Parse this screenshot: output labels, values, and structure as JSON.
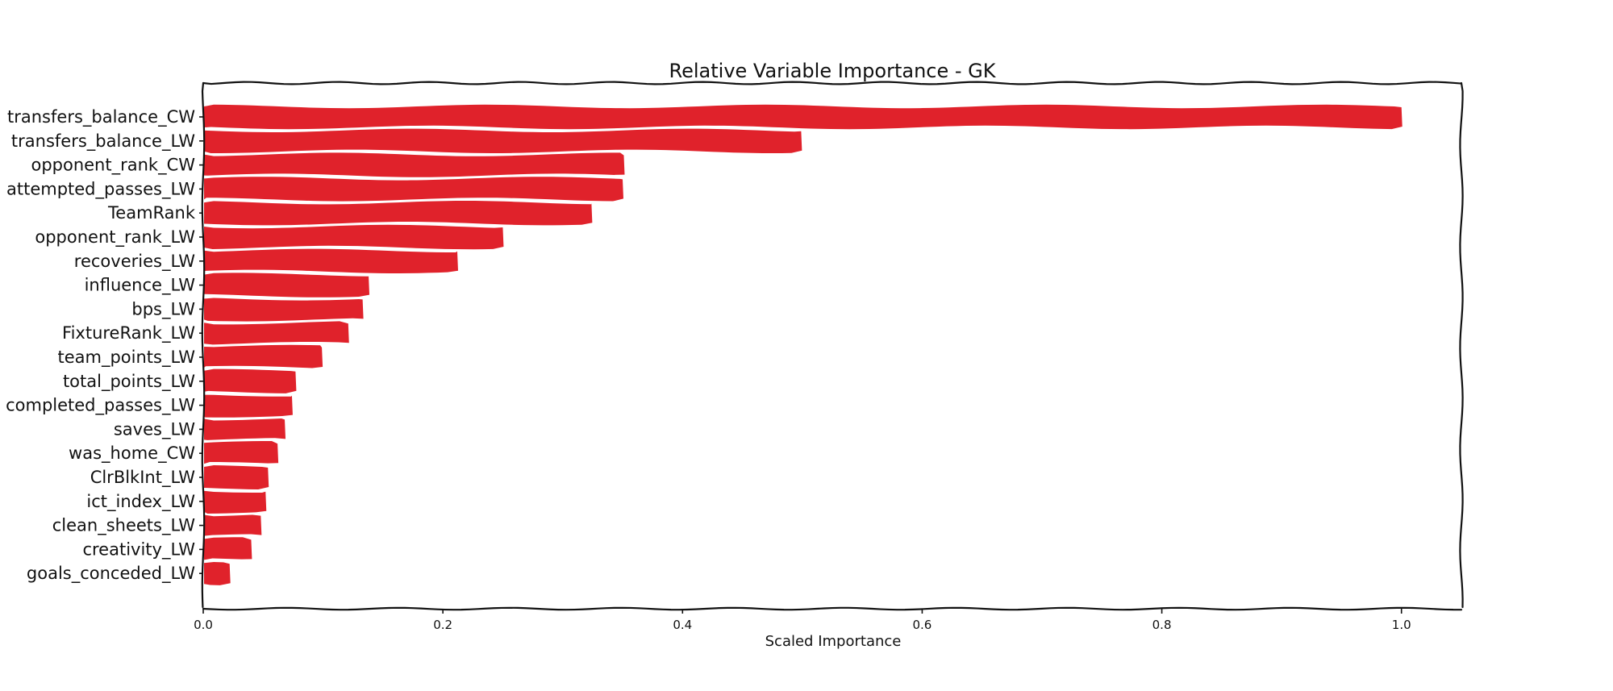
{
  "chart_data": {
    "type": "bar",
    "orientation": "horizontal",
    "title": "Relative Variable Importance - GK",
    "xlabel": "Scaled Importance",
    "ylabel": "",
    "xlim": [
      0,
      1.05
    ],
    "xticks": [
      0.0,
      0.2,
      0.4,
      0.6,
      0.8,
      1.0
    ],
    "xtick_labels": [
      "0.0",
      "0.2",
      "0.4",
      "0.6",
      "0.8",
      "1.0"
    ],
    "grid": false,
    "bar_color": "#e0222b",
    "categories": [
      "transfers_balance_CW",
      "transfers_balance_LW",
      "opponent_rank_CW",
      "attempted_passes_LW",
      "TeamRank",
      "opponent_rank_LW",
      "recoveries_LW",
      "influence_LW",
      "bps_LW",
      "FixtureRank_LW",
      "team_points_LW",
      "total_points_LW",
      "completed_passes_LW",
      "saves_LW",
      "was_home_CW",
      "ClrBlkInt_LW",
      "ict_index_LW",
      "clean_sheets_LW",
      "creativity_LW",
      "goals_conceded_LW"
    ],
    "values": [
      1.0,
      0.499,
      0.351,
      0.35,
      0.324,
      0.25,
      0.212,
      0.138,
      0.133,
      0.121,
      0.099,
      0.077,
      0.074,
      0.068,
      0.062,
      0.054,
      0.052,
      0.048,
      0.04,
      0.022
    ]
  }
}
